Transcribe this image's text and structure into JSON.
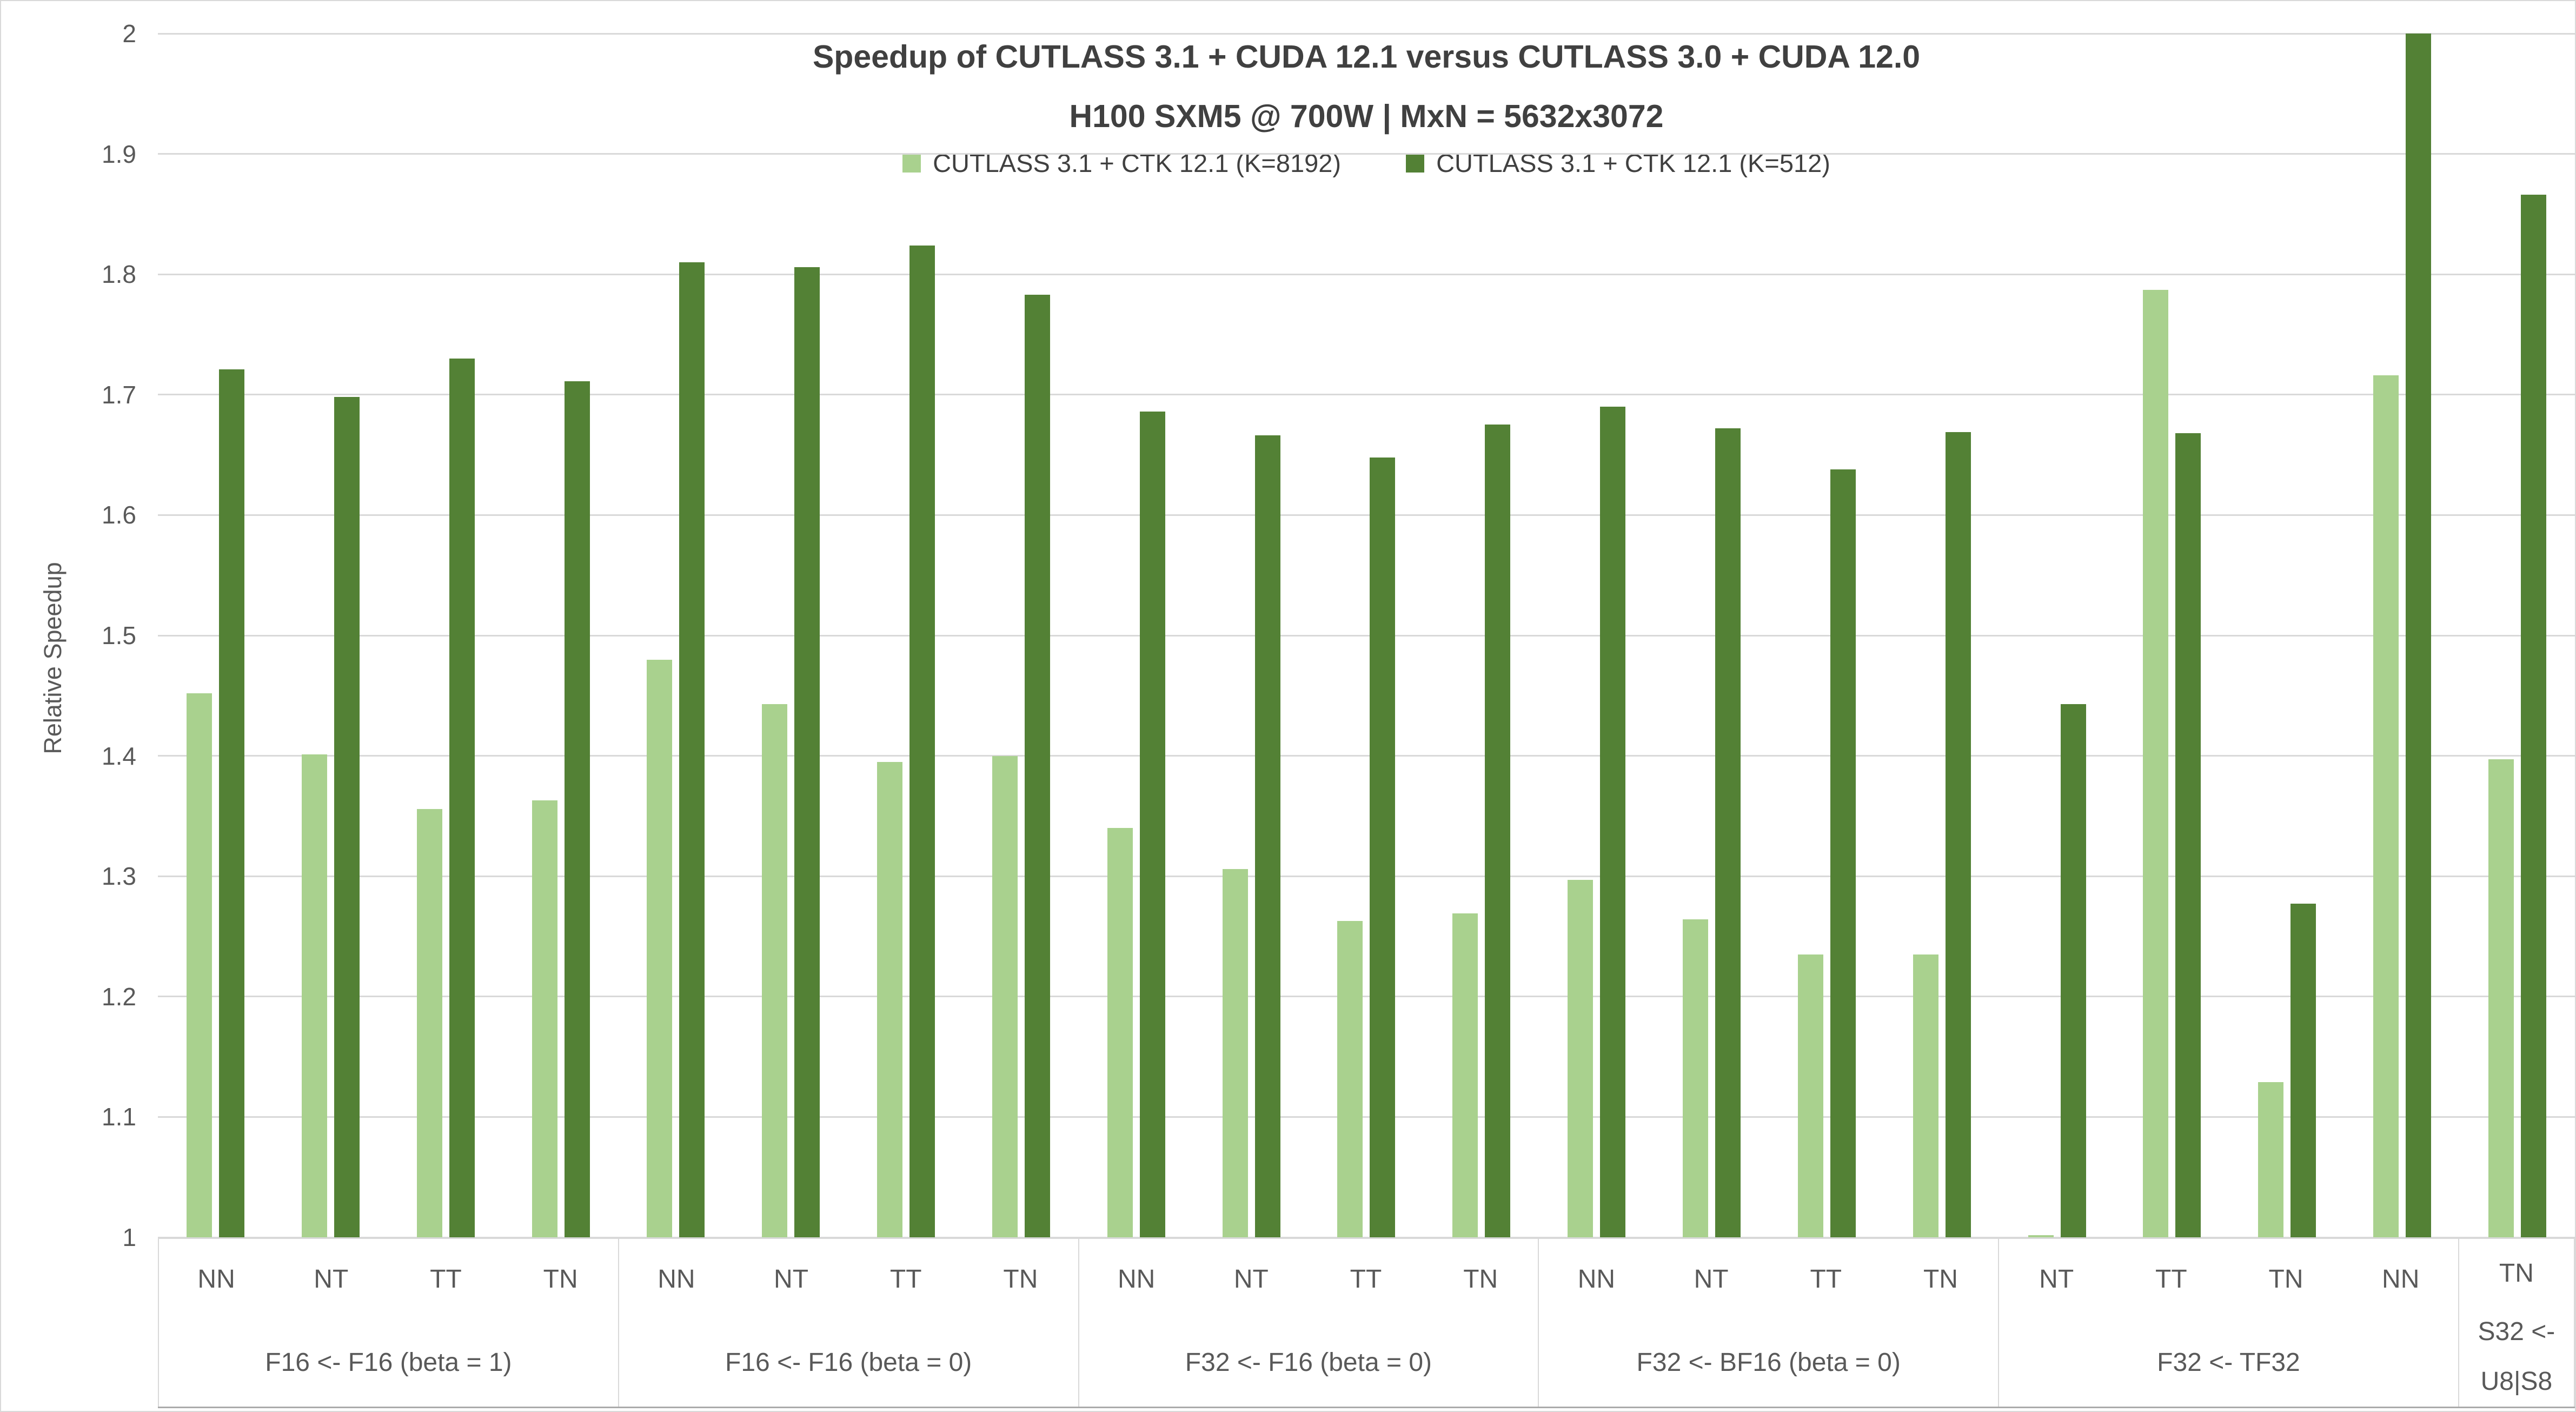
{
  "chart_data": {
    "type": "bar",
    "title": "Speedup of CUTLASS 3.1 + CUDA 12.1 versus CUTLASS 3.0 + CUDA 12.0",
    "subtitle": "H100 SXM5 @ 700W | MxN = 5632x3072",
    "ylabel": "Relative Speedup",
    "xlabel": "",
    "grid": "horizontal",
    "legend_position": "top-center",
    "y_axis": {
      "min": 1,
      "max": 2,
      "step": 0.1,
      "tick_labels": [
        "1",
        "1.1",
        "1.2",
        "1.3",
        "1.4",
        "1.5",
        "1.6",
        "1.7",
        "1.8",
        "1.9",
        "2"
      ]
    },
    "series": [
      {
        "name": "CUTLASS 3.1 + CTK 12.1 (K=8192)",
        "color": "#a9d18e",
        "key": "k8192"
      },
      {
        "name": "CUTLASS 3.1 + CTK 12.1 (K=512)",
        "color": "#538135",
        "key": "k512"
      }
    ],
    "groups": [
      {
        "label": "F16 <- F16 (beta = 1)",
        "label_lines": [
          "F16 <- F16 (beta = 1)"
        ],
        "items": [
          {
            "transpose": "NN",
            "values": [
              1.452,
              1.721
            ]
          },
          {
            "transpose": "NT",
            "values": [
              1.401,
              1.698
            ]
          },
          {
            "transpose": "TT",
            "values": [
              1.356,
              1.73
            ]
          },
          {
            "transpose": "TN",
            "values": [
              1.363,
              1.711
            ]
          }
        ]
      },
      {
        "label": "F16 <- F16 (beta = 0)",
        "label_lines": [
          "F16 <- F16 (beta = 0)"
        ],
        "items": [
          {
            "transpose": "NN",
            "values": [
              1.48,
              1.81
            ]
          },
          {
            "transpose": "NT",
            "values": [
              1.443,
              1.806
            ]
          },
          {
            "transpose": "TT",
            "values": [
              1.395,
              1.824
            ]
          },
          {
            "transpose": "TN",
            "values": [
              1.4,
              1.783
            ]
          }
        ]
      },
      {
        "label": "F32 <- F16 (beta = 0)",
        "label_lines": [
          "F32 <- F16 (beta = 0)"
        ],
        "items": [
          {
            "transpose": "NN",
            "values": [
              1.34,
              1.686
            ]
          },
          {
            "transpose": "NT",
            "values": [
              1.306,
              1.666
            ]
          },
          {
            "transpose": "TT",
            "values": [
              1.263,
              1.648
            ]
          },
          {
            "transpose": "TN",
            "values": [
              1.269,
              1.675
            ]
          }
        ]
      },
      {
        "label": "F32 <- BF16 (beta = 0)",
        "label_lines": [
          "F32 <- BF16 (beta = 0)"
        ],
        "items": [
          {
            "transpose": "NN",
            "values": [
              1.297,
              1.69
            ]
          },
          {
            "transpose": "NT",
            "values": [
              1.264,
              1.672
            ]
          },
          {
            "transpose": "TT",
            "values": [
              1.235,
              1.638
            ]
          },
          {
            "transpose": "TN",
            "values": [
              1.235,
              1.669
            ]
          }
        ]
      },
      {
        "label": "F32 <- TF32",
        "label_lines": [
          "F32 <- TF32"
        ],
        "items": [
          {
            "transpose": "NT",
            "values": [
              1.002,
              1.443
            ]
          },
          {
            "transpose": "TT",
            "values": [
              1.787,
              1.668
            ]
          },
          {
            "transpose": "TN",
            "values": [
              1.129,
              1.277
            ]
          },
          {
            "transpose": "NN",
            "values": [
              1.716,
              2.0
            ]
          }
        ]
      },
      {
        "label": "S32 <- U8|S8",
        "label_lines": [
          "S32 <-",
          "U8|S8"
        ],
        "items": [
          {
            "transpose": "TN",
            "values": [
              1.397,
              1.866
            ]
          }
        ]
      }
    ],
    "colors": {
      "background": "#ffffff",
      "gridline": "#d9d9d9",
      "axis_text": "#595959",
      "title_text": "#404040",
      "chart_border": "#d9d9d9",
      "axis_baseline": "#ababab"
    }
  }
}
